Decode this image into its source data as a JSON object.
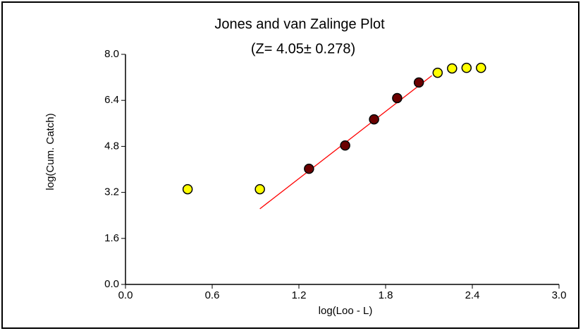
{
  "chart_data": {
    "type": "scatter",
    "title": "Jones and van Zalinge Plot",
    "subtitle": "(Z= 4.05± 0.278)",
    "x_label": "log(Loo - L)",
    "y_label": "log(Cum. Catch)",
    "xlim": [
      0,
      3
    ],
    "ylim": [
      0,
      8
    ],
    "xticks": [
      {
        "value": 0,
        "label": "0.0"
      },
      0.6,
      1.2,
      1.8,
      2.4,
      {
        "value": 3,
        "label": "3.0"
      }
    ],
    "yticks": [
      {
        "value": 0,
        "label": "0.0"
      },
      1.6,
      3.2,
      4.8,
      6.4,
      {
        "value": 8,
        "label": "8.0"
      }
    ],
    "grid": false,
    "series": [
      {
        "color": "#ffff00",
        "x": [
          0.43,
          0.93,
          2.16,
          2.26,
          2.36,
          2.46
        ],
        "values": [
          3.31,
          3.31,
          7.36,
          7.51,
          7.53,
          7.53
        ]
      },
      {
        "color": "#6b0000",
        "x": [
          1.27,
          1.52,
          1.72,
          1.88,
          2.03
        ],
        "values": [
          4.02,
          4.83,
          5.74,
          6.48,
          7.02
        ]
      }
    ],
    "fit_line": {
      "color": "#ff0000",
      "x": [
        0.93,
        2.12
      ],
      "values": [
        2.63,
        7.26
      ]
    }
  }
}
